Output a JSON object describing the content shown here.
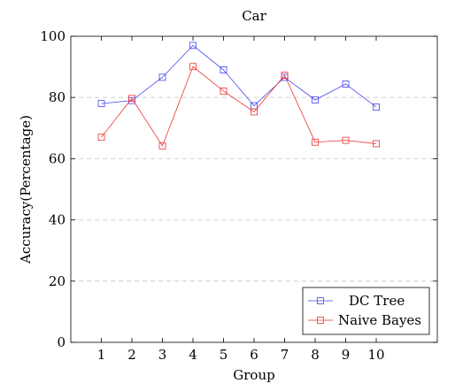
{
  "chart_data": {
    "type": "line",
    "title": "Car",
    "xlabel": "Group",
    "ylabel": "Accuracy(Percentage)",
    "x": [
      1,
      2,
      3,
      4,
      5,
      6,
      7,
      8,
      9,
      10
    ],
    "xlim": [
      0,
      12
    ],
    "ylim": [
      0,
      100
    ],
    "yticks": [
      0,
      20,
      40,
      60,
      80,
      100
    ],
    "grid": "horizontal-dashed",
    "legend_position": "bottom-right",
    "series": [
      {
        "name": "DC Tree",
        "color": "#4444ee",
        "marker": "square",
        "values": [
          78.0,
          79.0,
          86.6,
          97.0,
          89.0,
          77.3,
          86.6,
          79.2,
          84.4,
          76.9
        ]
      },
      {
        "name": "Naive Bayes",
        "color": "#ee3333",
        "marker": "square",
        "values": [
          67.0,
          79.7,
          64.2,
          90.1,
          82.1,
          75.3,
          87.3,
          65.4,
          66.0,
          64.9
        ]
      }
    ]
  }
}
